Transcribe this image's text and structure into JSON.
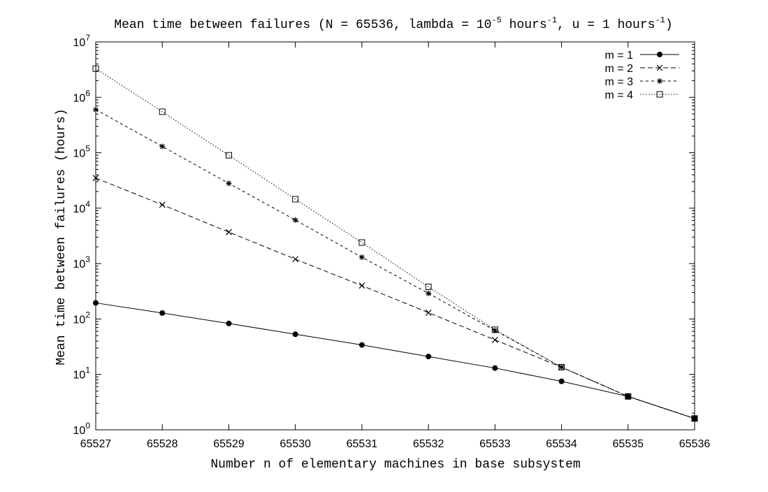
{
  "chart_data": {
    "type": "line",
    "title": {
      "prefix": "Mean time between failures (N = 65536, lambda = 10",
      "exp1": "-5",
      "mid": " hours",
      "exp2": "-1",
      "mid2": ", u = 1 hours",
      "exp3": "-1",
      "suffix": ")"
    },
    "xlabel": "Number n of elementary machines in base subsystem",
    "ylabel": "Mean time between failures (hours)",
    "x": [
      65527,
      65528,
      65529,
      65530,
      65531,
      65532,
      65533,
      65534,
      65535,
      65536
    ],
    "xlim": [
      65527,
      65536
    ],
    "ylim": [
      1,
      10000000
    ],
    "yscale": "log",
    "y_ticks": [
      {
        "base": "10",
        "exp": "0"
      },
      {
        "base": "10",
        "exp": "1"
      },
      {
        "base": "10",
        "exp": "2"
      },
      {
        "base": "10",
        "exp": "3"
      },
      {
        "base": "10",
        "exp": "4"
      },
      {
        "base": "10",
        "exp": "5"
      },
      {
        "base": "10",
        "exp": "6"
      },
      {
        "base": "10",
        "exp": "7"
      }
    ],
    "x_tick_labels": [
      "65527",
      "65528",
      "65529",
      "65530",
      "65531",
      "65532",
      "65533",
      "65534",
      "65535",
      "65536"
    ],
    "legend": "top-right",
    "grid": false,
    "series": [
      {
        "name": "m = 1",
        "marker": "filled-circle",
        "dash": "solid",
        "values": [
          195,
          128,
          83,
          53,
          34,
          21,
          13,
          7.5,
          4,
          1.6
        ]
      },
      {
        "name": "m = 2",
        "marker": "cross",
        "dash": "dashed",
        "values": [
          35000,
          11500,
          3700,
          1200,
          400,
          130,
          42,
          13.5,
          4,
          1.6
        ]
      },
      {
        "name": "m = 3",
        "marker": "star",
        "dash": "short-dashed",
        "values": [
          600000,
          130000,
          28000,
          6100,
          1300,
          290,
          62,
          13.5,
          4,
          1.6
        ]
      },
      {
        "name": "m = 4",
        "marker": "open-square",
        "dash": "dotted",
        "values": [
          3300000,
          550000,
          90000,
          14500,
          2400,
          380,
          64,
          13.5,
          4,
          1.6
        ]
      }
    ]
  }
}
